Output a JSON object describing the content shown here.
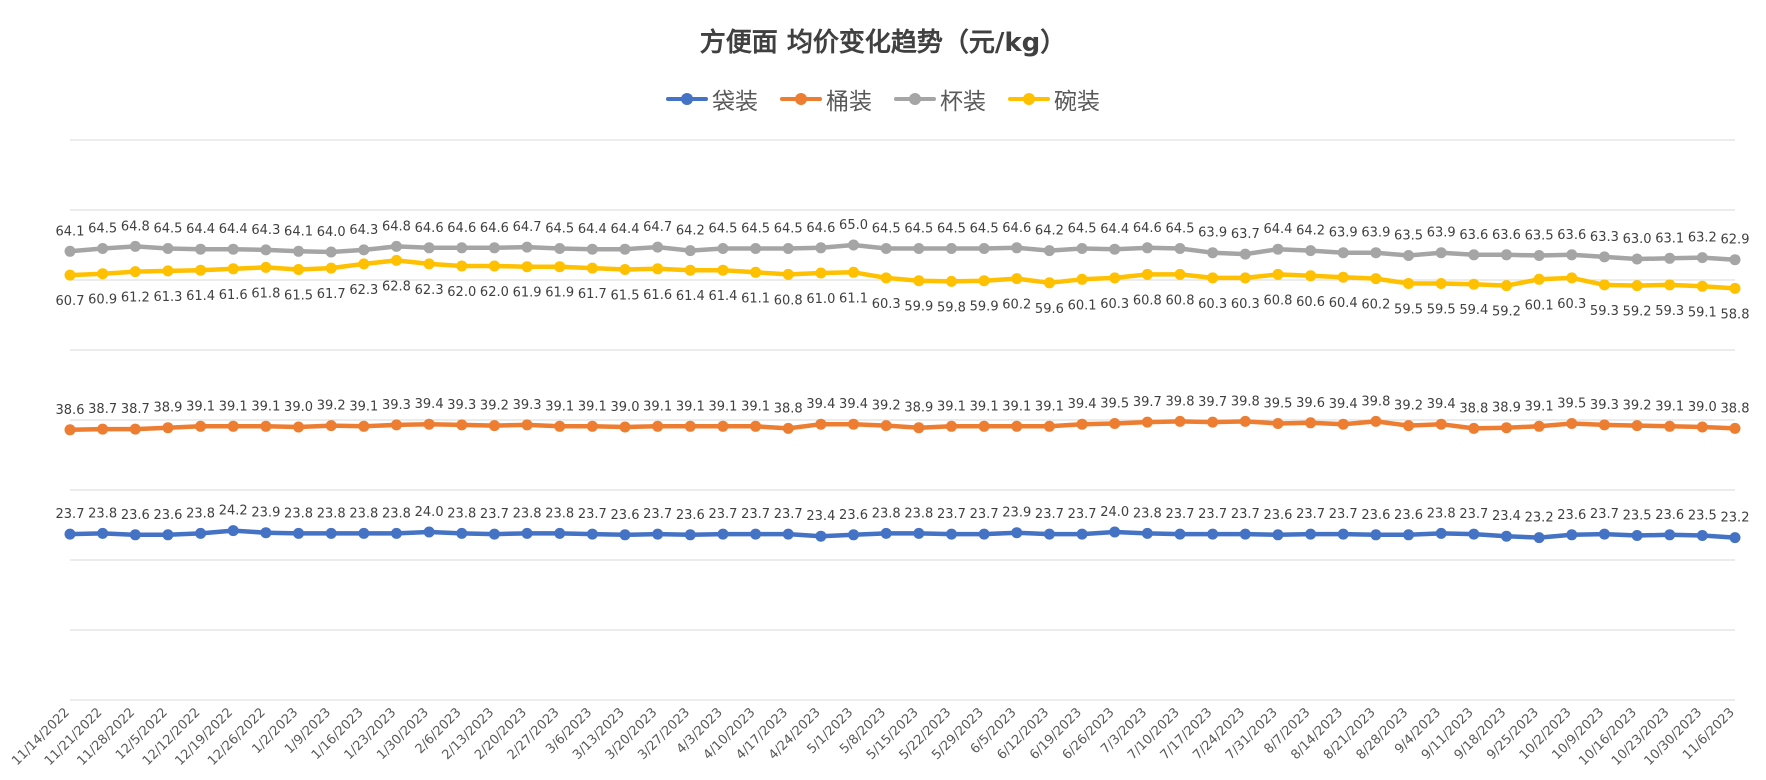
{
  "chart_data": {
    "type": "line",
    "title": "方便面 均价变化趋势（元/kg）",
    "xlabel": "",
    "ylabel": "",
    "ylim": [
      0,
      80
    ],
    "grid": true,
    "legend_position": "top",
    "categories": [
      "11/14/2022",
      "11/21/2022",
      "11/28/2022",
      "12/5/2022",
      "12/12/2022",
      "12/19/2022",
      "12/26/2022",
      "1/2/2023",
      "1/9/2023",
      "1/16/2023",
      "1/23/2023",
      "1/30/2023",
      "2/6/2023",
      "2/13/2023",
      "2/20/2023",
      "2/27/2023",
      "3/6/2023",
      "3/13/2023",
      "3/20/2023",
      "3/27/2023",
      "4/3/2023",
      "4/10/2023",
      "4/17/2023",
      "4/24/2023",
      "5/1/2023",
      "5/8/2023",
      "5/15/2023",
      "5/22/2023",
      "5/29/2023",
      "6/5/2023",
      "6/12/2023",
      "6/19/2023",
      "6/26/2023",
      "7/3/2023",
      "7/10/2023",
      "7/17/2023",
      "7/24/2023",
      "7/31/2023",
      "8/7/2023",
      "8/14/2023",
      "8/21/2023",
      "8/28/2023",
      "9/4/2023",
      "9/11/2023",
      "9/18/2023",
      "9/25/2023",
      "10/2/2023",
      "10/9/2023",
      "10/16/2023",
      "10/23/2023",
      "10/30/2023",
      "11/6/2023"
    ],
    "series": [
      {
        "name": "袋装",
        "color": "#4472C4",
        "values": [
          23.7,
          23.8,
          23.6,
          23.6,
          23.8,
          24.2,
          23.9,
          23.8,
          23.8,
          23.8,
          23.8,
          24.0,
          23.8,
          23.7,
          23.8,
          23.8,
          23.7,
          23.6,
          23.7,
          23.6,
          23.7,
          23.7,
          23.7,
          23.4,
          23.6,
          23.8,
          23.8,
          23.7,
          23.7,
          23.9,
          23.7,
          23.7,
          24.0,
          23.8,
          23.7,
          23.7,
          23.7,
          23.6,
          23.7,
          23.7,
          23.6,
          23.6,
          23.8,
          23.7,
          23.4,
          23.2,
          23.6,
          23.7,
          23.5,
          23.6,
          23.5,
          23.2
        ]
      },
      {
        "name": "桶装",
        "color": "#ED7D31",
        "values": [
          38.6,
          38.7,
          38.7,
          38.9,
          39.1,
          39.1,
          39.1,
          39.0,
          39.2,
          39.1,
          39.3,
          39.4,
          39.3,
          39.2,
          39.3,
          39.1,
          39.1,
          39.0,
          39.1,
          39.1,
          39.1,
          39.1,
          38.8,
          39.4,
          39.4,
          39.2,
          38.9,
          39.1,
          39.1,
          39.1,
          39.1,
          39.4,
          39.5,
          39.7,
          39.8,
          39.7,
          39.8,
          39.5,
          39.6,
          39.4,
          39.8,
          39.2,
          39.4,
          38.8,
          38.9,
          39.1,
          39.5,
          39.3,
          39.2,
          39.1,
          39.0,
          38.8
        ]
      },
      {
        "name": "杯装",
        "color": "#A5A5A5",
        "values": [
          64.1,
          64.5,
          64.8,
          64.5,
          64.4,
          64.4,
          64.3,
          64.1,
          64.0,
          64.3,
          64.8,
          64.6,
          64.6,
          64.6,
          64.7,
          64.5,
          64.4,
          64.4,
          64.7,
          64.2,
          64.5,
          64.5,
          64.5,
          64.6,
          65.0,
          64.5,
          64.5,
          64.5,
          64.5,
          64.6,
          64.2,
          64.5,
          64.4,
          64.6,
          64.5,
          63.9,
          63.7,
          64.4,
          64.2,
          63.9,
          63.9,
          63.5,
          63.9,
          63.6,
          63.6,
          63.5,
          63.6,
          63.3,
          63.0,
          63.1,
          63.2,
          62.9
        ]
      },
      {
        "name": "碗装",
        "color": "#FFC000",
        "values": [
          60.7,
          60.9,
          61.2,
          61.3,
          61.4,
          61.6,
          61.8,
          61.5,
          61.7,
          62.3,
          62.8,
          62.3,
          62.0,
          62.0,
          61.9,
          61.9,
          61.7,
          61.5,
          61.6,
          61.4,
          61.4,
          61.1,
          60.8,
          61.0,
          61.1,
          60.3,
          59.9,
          59.8,
          59.9,
          60.2,
          59.6,
          60.1,
          60.3,
          60.8,
          60.8,
          60.3,
          60.3,
          60.8,
          60.6,
          60.4,
          60.2,
          59.5,
          59.5,
          59.4,
          59.2,
          60.1,
          60.3,
          59.3,
          59.2,
          59.3,
          59.1,
          58.8
        ]
      }
    ]
  }
}
